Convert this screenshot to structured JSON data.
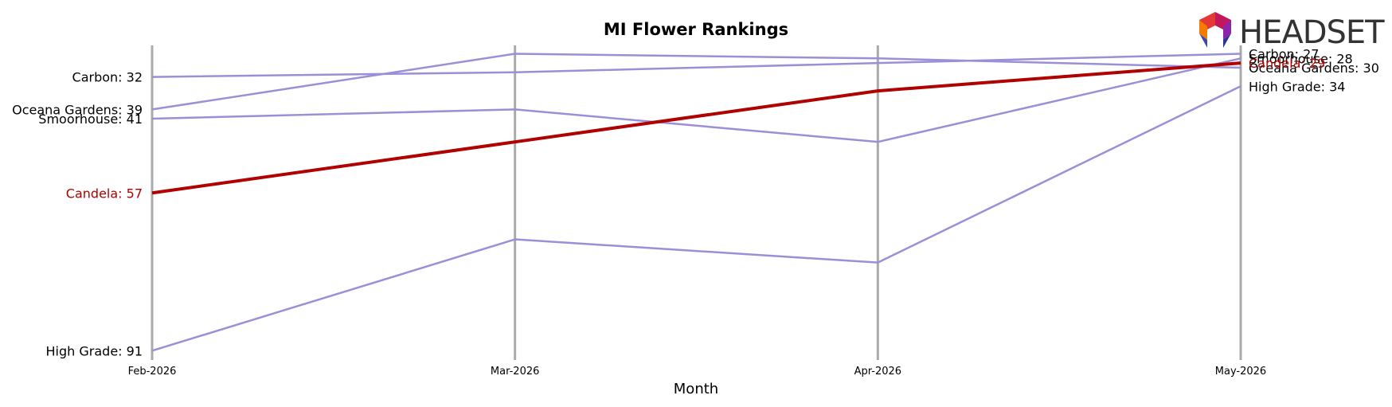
{
  "chart_data": {
    "type": "line",
    "title": "MI Flower Rankings",
    "xlabel": "Month",
    "ylabel": "",
    "x": [
      "Feb-2026",
      "Mar-2026",
      "Apr-2026",
      "May-2026"
    ],
    "y_inverted": true,
    "ylim": [
      93,
      24
    ],
    "grid": "vertical lines at each month",
    "highlight_series": "Candela",
    "series": [
      {
        "name": "Carbon",
        "values": [
          32,
          31,
          29,
          27
        ],
        "color": "#9b8fd8",
        "start_label": "Carbon: 32",
        "end_label": "Carbon: 27"
      },
      {
        "name": "Oceana Gardens",
        "values": [
          39,
          27,
          28,
          30
        ],
        "color": "#9b8fd8",
        "start_label": "Oceana Gardens: 39",
        "end_label": "Oceana Gardens: 30"
      },
      {
        "name": "Smoorhouse",
        "values": [
          41,
          39,
          46,
          28
        ],
        "color": "#9b8fd8",
        "start_label": "Smoorhouse: 41",
        "end_label": "Smoorhouse: 28"
      },
      {
        "name": "Candela",
        "values": [
          57,
          46,
          35,
          29
        ],
        "color": "#b00000",
        "start_label": "Candela: 57",
        "end_label": "Candela: 29"
      },
      {
        "name": "High Grade",
        "values": [
          91,
          67,
          72,
          34
        ],
        "color": "#9b8fd8",
        "start_label": "High Grade: 91",
        "end_label": "High Grade: 34"
      }
    ]
  },
  "logo": {
    "text": "HEADSET"
  },
  "colors": {
    "gridline": "#aaaaaa",
    "highlight": "#b00000",
    "other": "#9b8fd8",
    "logo_text": "#333333"
  }
}
